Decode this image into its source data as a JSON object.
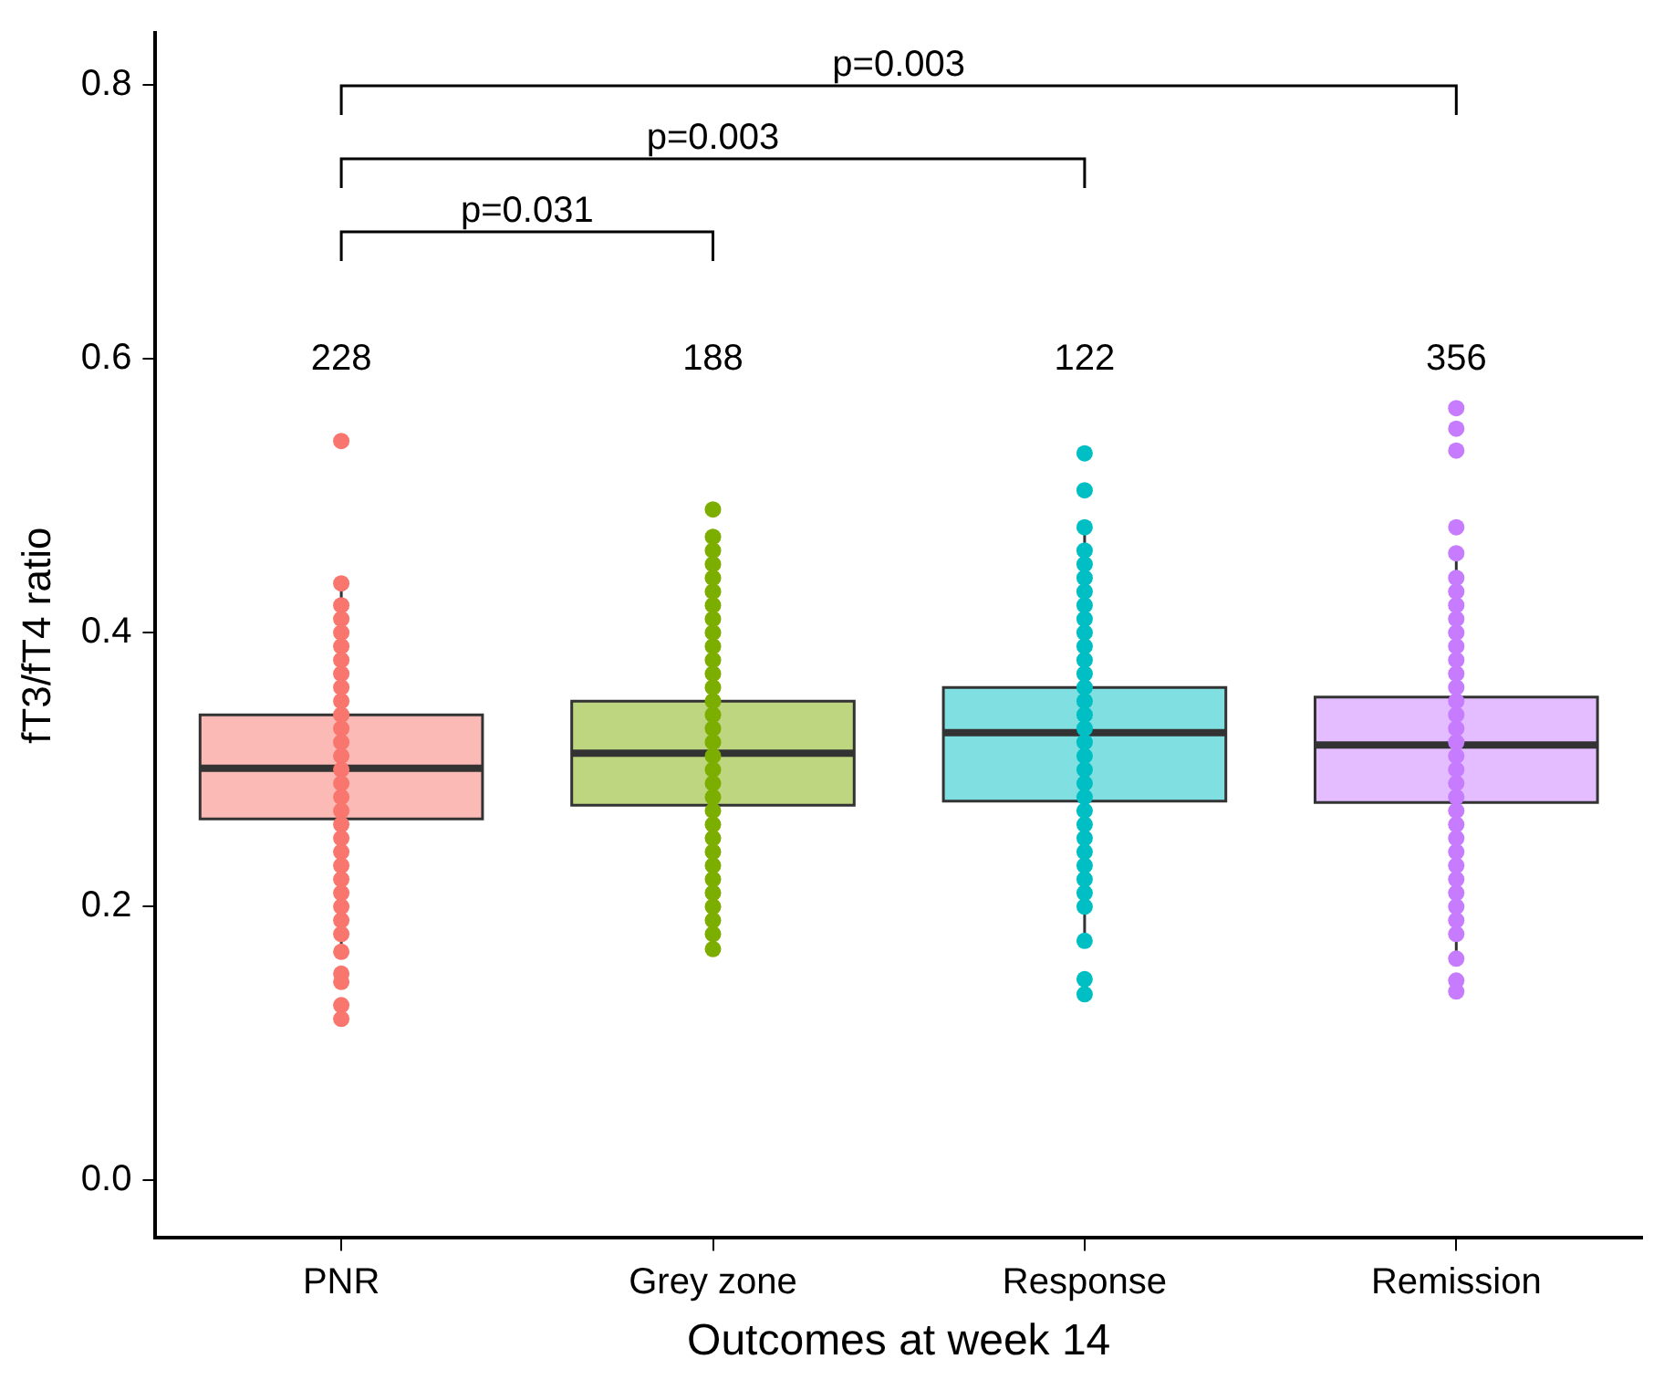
{
  "chart_data": {
    "type": "box",
    "xlabel": "Outcomes at week 14",
    "ylabel": "fT3/fT4 ratio",
    "categories": [
      "PNR",
      "Grey zone",
      "Response",
      "Remission"
    ],
    "colors": [
      "#f8766d",
      "#7cae00",
      "#00bfc4",
      "#c77cff"
    ],
    "boxes": [
      {
        "low": 0.167,
        "q1": 0.264,
        "median": 0.301,
        "q3": 0.34,
        "high": 0.436,
        "outliers": [
          0.54,
          0.151,
          0.145,
          0.128,
          0.118
        ]
      },
      {
        "low": 0.169,
        "q1": 0.274,
        "median": 0.312,
        "q3": 0.35,
        "high": 0.46,
        "outliers": [
          0.49,
          0.47
        ]
      },
      {
        "low": 0.175,
        "q1": 0.277,
        "median": 0.327,
        "q3": 0.36,
        "high": 0.477,
        "outliers": [
          0.531,
          0.504,
          0.147,
          0.136
        ]
      },
      {
        "low": 0.162,
        "q1": 0.276,
        "median": 0.318,
        "q3": 0.353,
        "high": 0.458,
        "outliers": [
          0.564,
          0.549,
          0.533,
          0.477,
          0.146,
          0.138
        ]
      }
    ],
    "series": [
      {
        "type": "scatter",
        "color": "#f8766d",
        "x": [
          "PNR",
          "PNR",
          "PNR",
          "PNR",
          "PNR",
          "PNR",
          "PNR",
          "PNR",
          "PNR",
          "PNR",
          "PNR",
          "PNR",
          "PNR",
          "PNR",
          "PNR",
          "PNR",
          "PNR",
          "PNR",
          "PNR",
          "PNR",
          "PNR",
          "PNR",
          "PNR",
          "PNR",
          "PNR",
          "PNR",
          "PNR"
        ],
        "values": [
          0.436,
          0.42,
          0.41,
          0.4,
          0.39,
          0.38,
          0.37,
          0.36,
          0.35,
          0.34,
          0.33,
          0.32,
          0.31,
          0.3,
          0.29,
          0.28,
          0.27,
          0.26,
          0.25,
          0.24,
          0.23,
          0.22,
          0.21,
          0.2,
          0.19,
          0.18,
          0.167
        ]
      },
      {
        "type": "scatter",
        "color": "#7cae00",
        "x": [
          "Grey zone",
          "Grey zone",
          "Grey zone",
          "Grey zone",
          "Grey zone",
          "Grey zone",
          "Grey zone",
          "Grey zone",
          "Grey zone",
          "Grey zone",
          "Grey zone",
          "Grey zone",
          "Grey zone",
          "Grey zone",
          "Grey zone",
          "Grey zone",
          "Grey zone",
          "Grey zone",
          "Grey zone",
          "Grey zone",
          "Grey zone",
          "Grey zone",
          "Grey zone",
          "Grey zone",
          "Grey zone",
          "Grey zone",
          "Grey zone",
          "Grey zone",
          "Grey zone",
          "Grey zone"
        ],
        "values": [
          0.46,
          0.45,
          0.44,
          0.43,
          0.42,
          0.41,
          0.4,
          0.39,
          0.38,
          0.37,
          0.36,
          0.35,
          0.34,
          0.33,
          0.32,
          0.31,
          0.3,
          0.29,
          0.28,
          0.27,
          0.26,
          0.25,
          0.24,
          0.23,
          0.22,
          0.21,
          0.2,
          0.19,
          0.18,
          0.169
        ]
      },
      {
        "type": "scatter",
        "color": "#00bfc4",
        "x": [
          "Response",
          "Response",
          "Response",
          "Response",
          "Response",
          "Response",
          "Response",
          "Response",
          "Response",
          "Response",
          "Response",
          "Response",
          "Response",
          "Response",
          "Response",
          "Response",
          "Response",
          "Response",
          "Response",
          "Response",
          "Response",
          "Response",
          "Response",
          "Response",
          "Response",
          "Response",
          "Response",
          "Response",
          "Response"
        ],
        "values": [
          0.477,
          0.46,
          0.45,
          0.44,
          0.43,
          0.42,
          0.41,
          0.4,
          0.39,
          0.38,
          0.37,
          0.36,
          0.35,
          0.34,
          0.33,
          0.32,
          0.31,
          0.3,
          0.29,
          0.28,
          0.27,
          0.26,
          0.25,
          0.24,
          0.23,
          0.22,
          0.21,
          0.2,
          0.175
        ]
      },
      {
        "type": "scatter",
        "color": "#c77cff",
        "x": [
          "Remission",
          "Remission",
          "Remission",
          "Remission",
          "Remission",
          "Remission",
          "Remission",
          "Remission",
          "Remission",
          "Remission",
          "Remission",
          "Remission",
          "Remission",
          "Remission",
          "Remission",
          "Remission",
          "Remission",
          "Remission",
          "Remission",
          "Remission",
          "Remission",
          "Remission",
          "Remission",
          "Remission",
          "Remission",
          "Remission",
          "Remission",
          "Remission",
          "Remission"
        ],
        "values": [
          0.458,
          0.44,
          0.43,
          0.42,
          0.41,
          0.4,
          0.39,
          0.38,
          0.37,
          0.36,
          0.35,
          0.34,
          0.33,
          0.32,
          0.31,
          0.3,
          0.29,
          0.28,
          0.27,
          0.26,
          0.25,
          0.24,
          0.23,
          0.22,
          0.21,
          0.2,
          0.19,
          0.18,
          0.162
        ]
      }
    ],
    "ylim": [
      -0.042,
      0.838
    ],
    "yticks": [
      {
        "value": 0,
        "label": "0.0"
      },
      0.2,
      0.4,
      0.6,
      0.8
    ],
    "annotations": [
      "228",
      "188",
      "122",
      "356",
      "p=0.031",
      "p=0.003",
      "p=0.003"
    ],
    "grid": false,
    "legend": false,
    "marker": "circle"
  }
}
